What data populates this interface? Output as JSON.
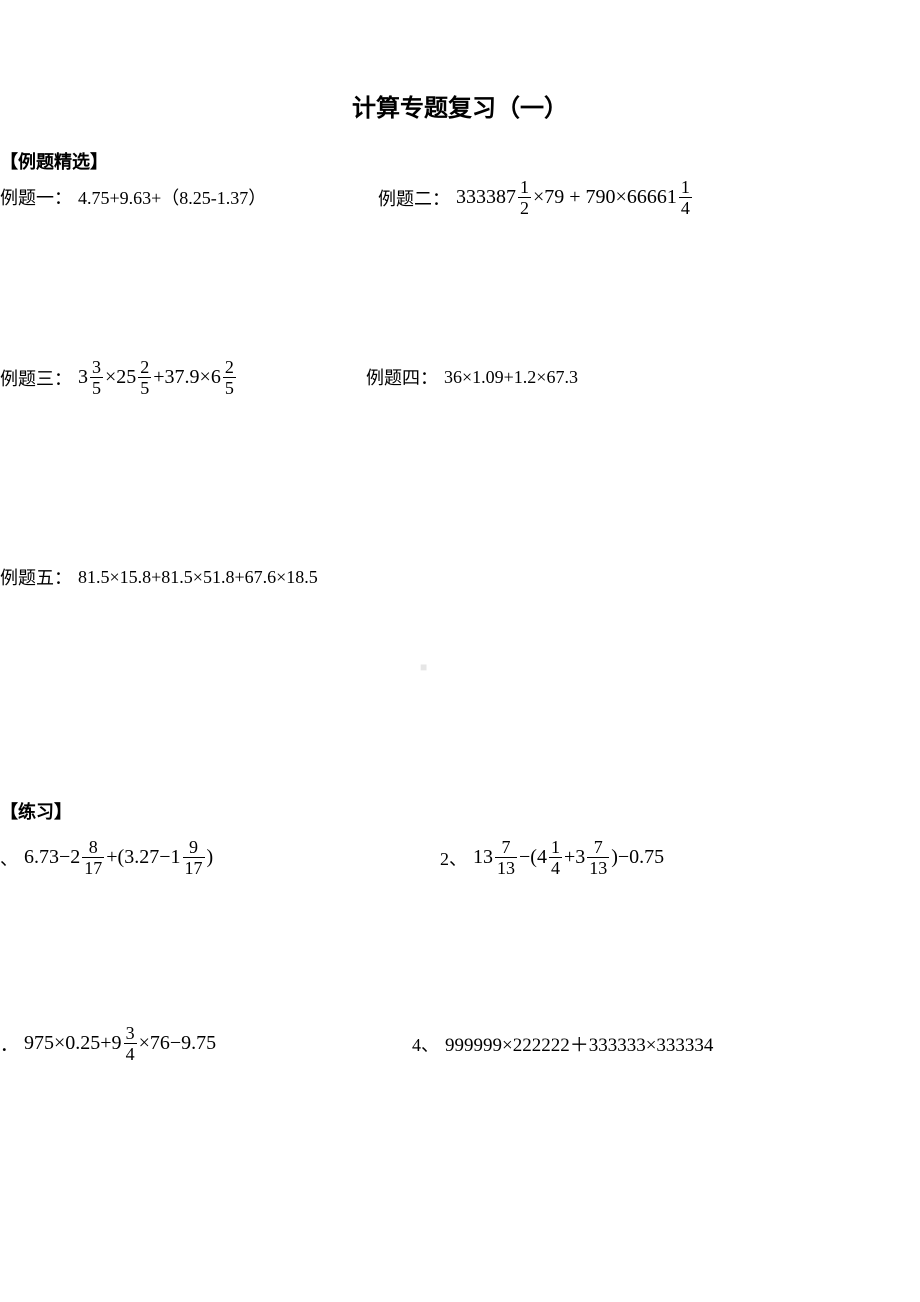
{
  "title": "计算专题复习（一）",
  "sections": {
    "examples_header": "【例题精选】",
    "exercises_header": "【练习】"
  },
  "examples": {
    "p1": {
      "label": "例题一：",
      "expr": "4.75+9.63+（8.25-1.37）"
    },
    "p2": {
      "label": "例题二：",
      "parts": {
        "a": "333387",
        "f1n": "1",
        "f1d": "2",
        "b": "×79 + 790×66661",
        "f2n": "1",
        "f2d": "4"
      }
    },
    "p3": {
      "label": "例题三：",
      "parts": {
        "a": "3",
        "f1n": "3",
        "f1d": "5",
        "b": "×25",
        "f2n": "2",
        "f2d": "5",
        "c": "+37.9×6",
        "f3n": "2",
        "f3d": "5"
      }
    },
    "p4": {
      "label": "例题四：",
      "expr": "36×1.09+1.2×67.3"
    },
    "p5": {
      "label": "例题五：",
      "expr": "81.5×15.8+81.5×51.8+67.6×18.5"
    }
  },
  "exercises": {
    "e1": {
      "label": "、",
      "parts": {
        "a": "6.73−2",
        "f1n": "8",
        "f1d": "17",
        "b": "+(3.27−1",
        "f2n": "9",
        "f2d": "17",
        "c": ")"
      }
    },
    "e2": {
      "label": "2、",
      "parts": {
        "a": "13",
        "f1n": "7",
        "f1d": "13",
        "b": "−(4",
        "f2n": "1",
        "f2d": "4",
        "c": "+3",
        "f3n": "7",
        "f3d": "13",
        "d": ")−0.75"
      }
    },
    "e3": {
      "label": "．",
      "parts": {
        "a": "975×0.25+9",
        "f1n": "3",
        "f1d": "4",
        "b": "×76−9.75"
      }
    },
    "e4": {
      "label": "4、",
      "expr": "999999×222222＋333333×333334"
    }
  },
  "watermark": "■",
  "colors": {
    "text": "#000000",
    "background": "#ffffff",
    "watermark": "#e6e6e6"
  },
  "typography": {
    "title_fontsize": 24,
    "body_fontsize": 18,
    "math_fontsize": 20
  }
}
